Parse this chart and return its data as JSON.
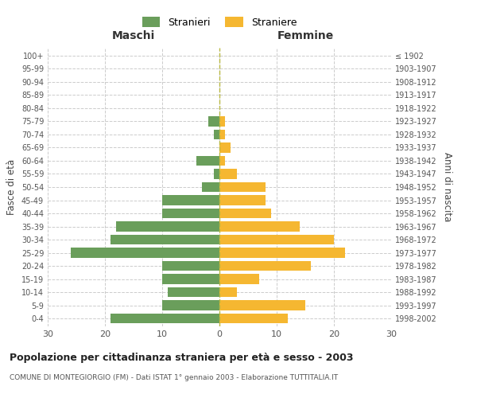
{
  "age_groups": [
    "0-4",
    "5-9",
    "10-14",
    "15-19",
    "20-24",
    "25-29",
    "30-34",
    "35-39",
    "40-44",
    "45-49",
    "50-54",
    "55-59",
    "60-64",
    "65-69",
    "70-74",
    "75-79",
    "80-84",
    "85-89",
    "90-94",
    "95-99",
    "100+"
  ],
  "birth_years": [
    "1998-2002",
    "1993-1997",
    "1988-1992",
    "1983-1987",
    "1978-1982",
    "1973-1977",
    "1968-1972",
    "1963-1967",
    "1958-1962",
    "1953-1957",
    "1948-1952",
    "1943-1947",
    "1938-1942",
    "1933-1937",
    "1928-1932",
    "1923-1927",
    "1918-1922",
    "1913-1917",
    "1908-1912",
    "1903-1907",
    "≤ 1902"
  ],
  "maschi": [
    19,
    10,
    9,
    10,
    10,
    26,
    19,
    18,
    10,
    10,
    3,
    1,
    4,
    0,
    1,
    2,
    0,
    0,
    0,
    0,
    0
  ],
  "femmine": [
    12,
    15,
    3,
    7,
    16,
    22,
    20,
    14,
    9,
    8,
    8,
    3,
    1,
    2,
    1,
    1,
    0,
    0,
    0,
    0,
    0
  ],
  "color_maschi": "#6a9e5b",
  "color_femmine": "#f5b731",
  "title": "Popolazione per cittadinanza straniera per età e sesso - 2003",
  "subtitle": "COMUNE DI MONTEGIORGIO (FM) - Dati ISTAT 1° gennaio 2003 - Elaborazione TUTTITALIA.IT",
  "xlabel_left": "Maschi",
  "xlabel_right": "Femmine",
  "ylabel_left": "Fasce di età",
  "ylabel_right": "Anni di nascita",
  "xlim": 30,
  "legend_stranieri": "Stranieri",
  "legend_straniere": "Straniere",
  "background_color": "#ffffff"
}
